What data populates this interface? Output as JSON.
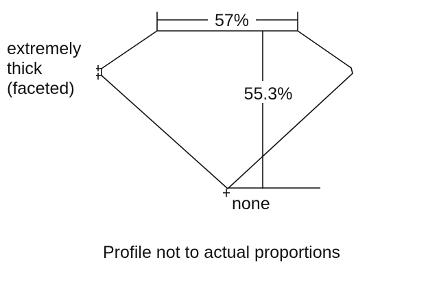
{
  "diagram": {
    "table_label": "57%",
    "depth_label": "55.3%",
    "girdle_label": [
      "extremely",
      "thick",
      "(faceted)"
    ],
    "culet_label": "none",
    "caption": "Profile not to actual proportions",
    "line_color": "#111111"
  }
}
